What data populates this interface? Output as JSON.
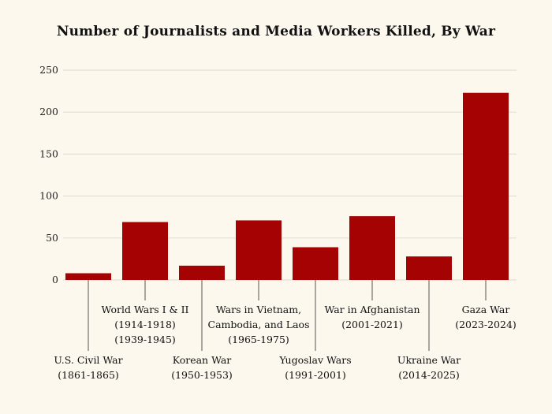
{
  "chart_data": {
    "type": "bar",
    "title": "Number of Journalists and Media Workers Killed, By War",
    "xlabel": "",
    "ylabel": "",
    "ylim": [
      0,
      250
    ],
    "yticks": [
      0,
      50,
      100,
      150,
      200,
      250
    ],
    "grid": true,
    "categories": [
      [
        "U.S. Civil War",
        "(1861-1865)"
      ],
      [
        "World Wars I & II",
        "(1914-1918)",
        "(1939-1945)"
      ],
      [
        "Korean War",
        "(1950-1953)"
      ],
      [
        "Wars in Vietnam,",
        "Cambodia, and Laos",
        "(1965-1975)"
      ],
      [
        "Yugoslav Wars",
        "(1991-2001)"
      ],
      [
        "War in Afghanistan",
        "(2001-2021)"
      ],
      [
        "Ukraine War",
        "(2014-2025)"
      ],
      [
        "Gaza War",
        "(2023-2024)"
      ]
    ],
    "values": [
      8,
      69,
      17,
      71,
      39,
      76,
      28,
      223
    ],
    "colors": {
      "bar": "#a50303",
      "grid": "#e4e0d6",
      "background": "#fdf8ee"
    }
  }
}
